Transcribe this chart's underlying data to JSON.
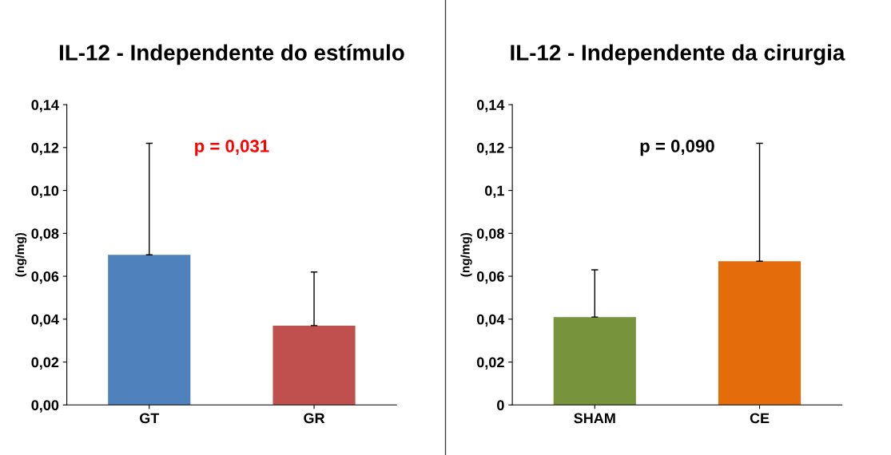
{
  "chart_data": [
    {
      "type": "bar",
      "title": "IL-12 - Independente do estímulo",
      "ylabel": "(ng/mg)",
      "categories": [
        "GT",
        "GR"
      ],
      "values": [
        0.07,
        0.037
      ],
      "colors": [
        "#4f81bd",
        "#c0504d"
      ],
      "errors": [
        [
          0.07,
          0.122
        ],
        [
          0.037,
          0.062
        ]
      ],
      "ylim": [
        0,
        0.14
      ],
      "yticks": [
        {
          "value": 0,
          "label": "0,00"
        },
        {
          "value": 0.02,
          "label": "0,02"
        },
        {
          "value": 0.04,
          "label": "0,04"
        },
        {
          "value": 0.06,
          "label": "0,06"
        },
        {
          "value": 0.08,
          "label": "0,08"
        },
        {
          "value": 0.1,
          "label": "0,10"
        },
        {
          "value": 0.12,
          "label": "0,12"
        },
        {
          "value": 0.14,
          "label": "0,14"
        }
      ],
      "grid": false,
      "legend": false,
      "annotations": [
        "p = 0,031"
      ]
    },
    {
      "type": "bar",
      "title": "IL-12 - Independente da cirurgia",
      "ylabel": "(ng/mg)",
      "categories": [
        "SHAM",
        "CE"
      ],
      "values": [
        0.041,
        0.067
      ],
      "colors": [
        "#77933c",
        "#e46c0a"
      ],
      "errors": [
        [
          0.041,
          0.063
        ],
        [
          0.067,
          0.122
        ]
      ],
      "ylim": [
        0,
        0.14
      ],
      "yticks": [
        {
          "value": 0,
          "label": "0"
        },
        {
          "value": 0.02,
          "label": "0,02"
        },
        {
          "value": 0.04,
          "label": "0,04"
        },
        {
          "value": 0.06,
          "label": "0,06"
        },
        {
          "value": 0.08,
          "label": "0,08"
        },
        {
          "value": 0.1,
          "label": "0,1"
        },
        {
          "value": 0.12,
          "label": "0,12"
        },
        {
          "value": 0.14,
          "label": "0,14"
        }
      ],
      "grid": false,
      "legend": false,
      "annotations": [
        "p = 0,090"
      ]
    }
  ]
}
